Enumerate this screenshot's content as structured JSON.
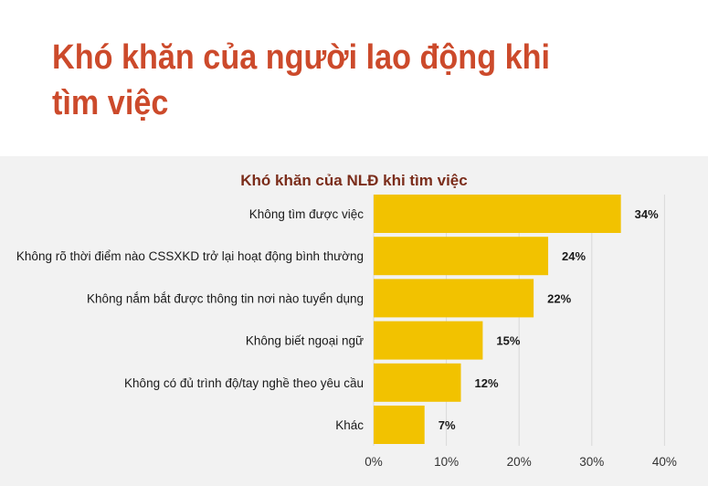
{
  "header": {
    "title": "Khó khăn của người lao động khi tìm việc"
  },
  "colors": {
    "title": "#cc4a2b",
    "chart_title": "#7b2d1b",
    "bar": "#f2c200",
    "panel": "#f2f2f2"
  },
  "chart_data": {
    "type": "bar",
    "orientation": "horizontal",
    "title": "Khó khăn của NLĐ khi tìm việc",
    "categories": [
      "Không tìm được việc",
      "Không rõ thời điểm nào CSSXKD trở lại hoạt động bình thường",
      "Không nắm bắt được thông tin nơi nào tuyển dụng",
      "Không biết ngoại ngữ",
      "Không có đủ trình độ/tay nghề theo yêu cầu",
      "Khác"
    ],
    "values": [
      34,
      24,
      22,
      15,
      12,
      7
    ],
    "value_labels": [
      "34%",
      "24%",
      "22%",
      "15%",
      "12%",
      "7%"
    ],
    "xlim": [
      0,
      40
    ],
    "ticks": [
      0,
      10,
      20,
      30,
      40
    ],
    "tick_labels": [
      "0%",
      "10%",
      "20%",
      "30%",
      "40%"
    ],
    "grid": true,
    "xlabel": "",
    "ylabel": ""
  }
}
